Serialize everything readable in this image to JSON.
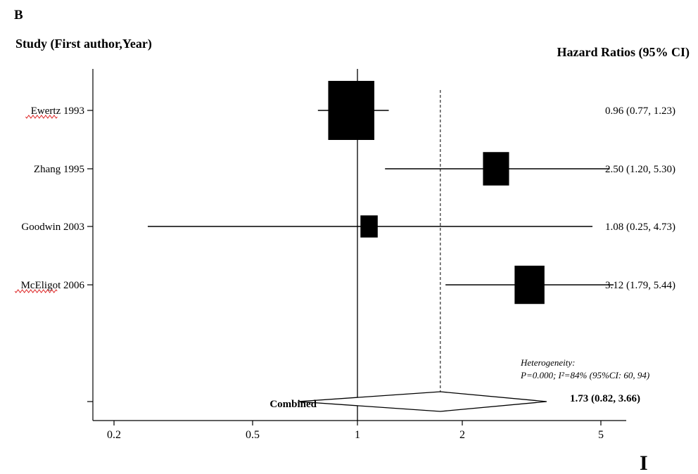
{
  "chart_data": {
    "type": "forest",
    "panel_label": "B",
    "left_header": "Study (First author,Year)",
    "right_header": "Hazard Ratios (95% CI)",
    "x_scale": "log",
    "xlim": [
      0.18,
      5.4
    ],
    "x_ticks": [
      0.2,
      0.5,
      1,
      2,
      5
    ],
    "x_tick_labels": [
      "0.2",
      "0.5",
      "1",
      "2",
      "5"
    ],
    "null_line": 1,
    "studies": [
      {
        "label": "Ewertz 1993",
        "hr": 0.96,
        "lower": 0.77,
        "upper": 1.23,
        "weight": 1.0,
        "ci_text": "0.96 (0.77, 1.23)",
        "underlined_misspelling": true
      },
      {
        "label": "Zhang 1995",
        "hr": 2.5,
        "lower": 1.2,
        "upper": 5.3,
        "weight": 0.32,
        "ci_text": "2.50 (1.20, 5.30)",
        "underlined_misspelling": false
      },
      {
        "label": "Goodwin 2003",
        "hr": 1.08,
        "lower": 0.25,
        "upper": 4.73,
        "weight": 0.14,
        "ci_text": "1.08 (0.25, 4.73)",
        "underlined_misspelling": false
      },
      {
        "label": "McEligot 2006",
        "hr": 3.12,
        "lower": 1.79,
        "upper": 5.44,
        "weight": 0.42,
        "ci_text": "3.12 (1.79, 5.44)",
        "underlined_misspelling": true
      }
    ],
    "combined": {
      "label": "Combined",
      "hr": 1.73,
      "lower": 0.82,
      "upper": 3.66,
      "ci_text": "1.73 (0.82, 3.66)"
    },
    "heterogeneity": {
      "title": "Heterogeneity:",
      "text": "P=0.000; I²=84% (95%CI: 60, 94)"
    },
    "footer_mark": "I"
  }
}
